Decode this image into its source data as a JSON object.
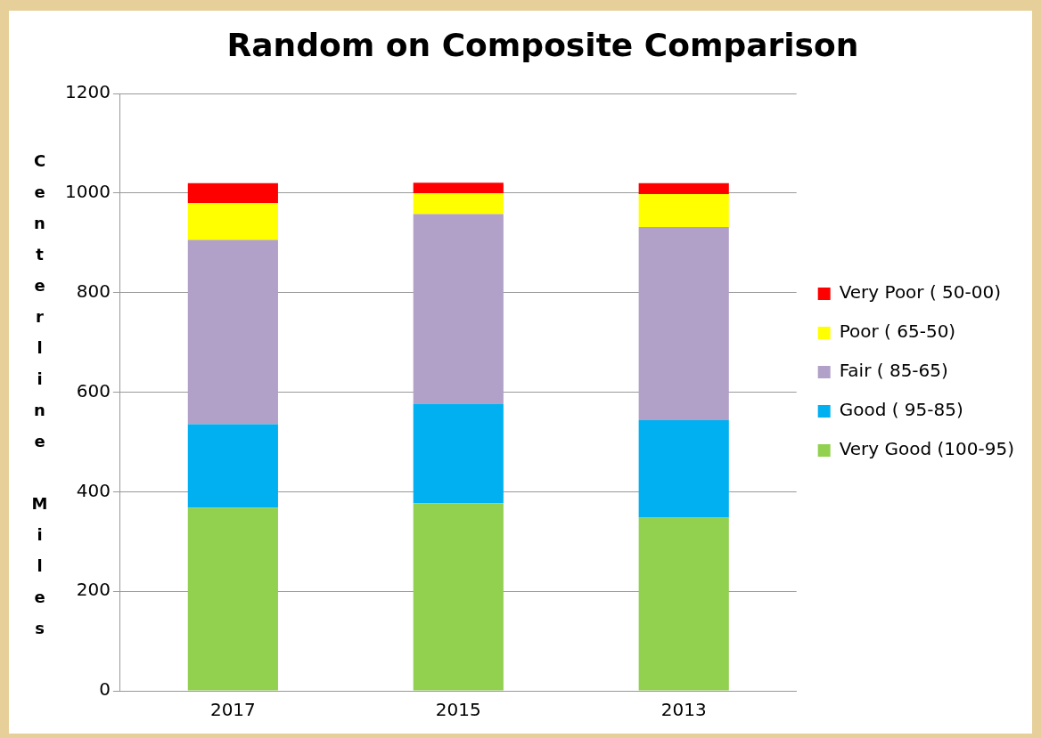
{
  "chart_data": {
    "type": "bar",
    "title": "Random on Composite Comparison",
    "ylabel": "Centerline Miles",
    "categories": [
      "2017",
      "2015",
      "2013"
    ],
    "stacked": true,
    "series": [
      {
        "name": "Very Good (100-95)",
        "color": "#92d050",
        "values": [
          368,
          377,
          348
        ]
      },
      {
        "name": "Good ( 95-85)",
        "color": "#00b0f0",
        "values": [
          168,
          200,
          196
        ]
      },
      {
        "name": "Fair ( 85-65)",
        "color": "#b1a0c7",
        "values": [
          370,
          381,
          388
        ]
      },
      {
        "name": "Poor ( 65-50)",
        "color": "#ffff00",
        "values": [
          74,
          42,
          66
        ]
      },
      {
        "name": "Very Poor ( 50-00)",
        "color": "#ff0000",
        "values": [
          40,
          21,
          22
        ]
      }
    ],
    "ylim": [
      0,
      1200
    ],
    "yticks": [
      0,
      200,
      400,
      600,
      800,
      1000,
      1200
    ],
    "grid": "y",
    "legend": "right"
  }
}
